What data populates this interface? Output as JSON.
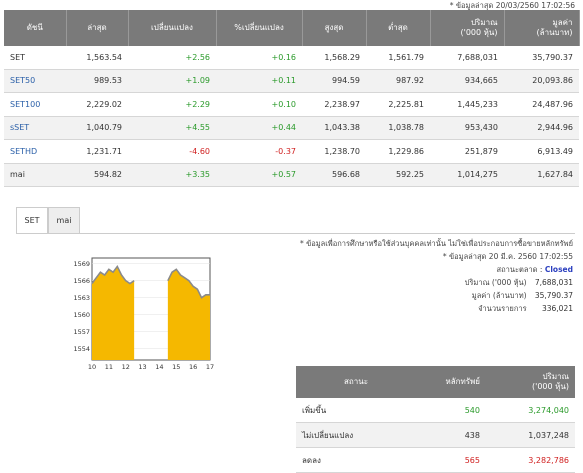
{
  "top_note": "* ข้อมูลล่าสุด 20/03/2560 17:02:56",
  "index_table": {
    "headers": [
      "ดัชนี",
      "ล่าสุด",
      "เปลี่ยนแปลง",
      "%เปลี่ยนแปลง",
      "สูงสุด",
      "ต่ำสุด",
      "ปริมาณ\n('000 หุ้น)",
      "มูลค่า\n(ล้านบาท)"
    ],
    "rows": [
      {
        "name": "SET",
        "last": "1,563.54",
        "chg": "+2.56",
        "pct": "+0.16",
        "high": "1,568.29",
        "low": "1,561.79",
        "vol": "7,688,031",
        "val": "35,790.37",
        "dir": "pos",
        "link": false
      },
      {
        "name": "SET50",
        "last": "989.53",
        "chg": "+1.09",
        "pct": "+0.11",
        "high": "994.59",
        "low": "987.92",
        "vol": "934,665",
        "val": "20,093.86",
        "dir": "pos",
        "link": true
      },
      {
        "name": "SET100",
        "last": "2,229.02",
        "chg": "+2.29",
        "pct": "+0.10",
        "high": "2,238.97",
        "low": "2,225.81",
        "vol": "1,445,233",
        "val": "24,487.96",
        "dir": "pos",
        "link": true
      },
      {
        "name": "sSET",
        "last": "1,040.79",
        "chg": "+4.55",
        "pct": "+0.44",
        "high": "1,043.38",
        "low": "1,038.78",
        "vol": "953,430",
        "val": "2,944.96",
        "dir": "pos",
        "link": true
      },
      {
        "name": "SETHD",
        "last": "1,231.71",
        "chg": "-4.60",
        "pct": "-0.37",
        "high": "1,238.70",
        "low": "1,229.86",
        "vol": "251,879",
        "val": "6,913.49",
        "dir": "neg",
        "link": true
      },
      {
        "name": "mai",
        "last": "594.82",
        "chg": "+3.35",
        "pct": "+0.57",
        "high": "596.68",
        "low": "592.25",
        "vol": "1,014,275",
        "val": "1,627.84",
        "dir": "pos",
        "link": false
      }
    ]
  },
  "tabs": [
    {
      "label": "SET",
      "active": true
    },
    {
      "label": "mai",
      "active": false
    }
  ],
  "disclaimer": "* ข้อมูลเพื่อการศึกษาหรือใช้ส่วนบุคคลเท่านั้น ไม่ใช่เพื่อประกอบการซื้อขายหลักทรัพย์",
  "market_info": {
    "date_label": "* ข้อมูลล่าสุด 20 มี.ค. 2560 17:02:55",
    "status_label": "สถานะตลาด :",
    "status_value": "Closed",
    "volume_label": "ปริมาณ ('000 หุ้น)",
    "volume_value": "7,688,031",
    "value_label": "มูลค่า (ล้านบาท)",
    "value_value": "35,790.37",
    "trades_label": "จำนวนรายการ",
    "trades_value": "336,021"
  },
  "breadth_table": {
    "headers": [
      "สถานะ",
      "หลักทรัพย์",
      "ปริมาณ\n('000 หุ้น)"
    ],
    "rows": [
      {
        "label": "เพิ่มขึ้น",
        "count": "540",
        "volume": "3,274,040",
        "dir": "pos"
      },
      {
        "label": "ไม่เปลี่ยนแปลง",
        "count": "438",
        "volume": "1,037,248",
        "dir": "none"
      },
      {
        "label": "ลดลง",
        "count": "565",
        "volume": "3,282,786",
        "dir": "neg"
      }
    ]
  },
  "colors": {
    "area_fill": "#f5b800",
    "line": "#8a8a8a",
    "frame": "#555555",
    "positive": "#2a9a2a",
    "negative": "#d02020"
  },
  "chart_data": {
    "type": "area",
    "x_ticks": [
      "10",
      "11",
      "12",
      "13",
      "14",
      "15",
      "16",
      "17"
    ],
    "y_ticks": [
      "1569",
      "1566",
      "1563",
      "1560",
      "1557",
      "1554"
    ],
    "ylim": [
      1552,
      1570
    ],
    "xlim": [
      10,
      17
    ],
    "session_gap": [
      12.5,
      14.5
    ],
    "series": [
      {
        "values": [
          [
            10.0,
            1565.5
          ],
          [
            10.25,
            1566.5
          ],
          [
            10.5,
            1567.5
          ],
          [
            10.75,
            1567.0
          ],
          [
            11.0,
            1568.0
          ],
          [
            11.25,
            1567.5
          ],
          [
            11.5,
            1568.5
          ],
          [
            11.75,
            1567.0
          ],
          [
            12.0,
            1566.0
          ],
          [
            12.25,
            1565.5
          ],
          [
            12.5,
            1566.0
          ],
          [
            14.5,
            1566.0
          ],
          [
            14.75,
            1567.5
          ],
          [
            15.0,
            1568.0
          ],
          [
            15.25,
            1567.0
          ],
          [
            15.5,
            1566.5
          ],
          [
            15.75,
            1566.0
          ],
          [
            16.0,
            1565.0
          ],
          [
            16.25,
            1564.5
          ],
          [
            16.5,
            1563.0
          ],
          [
            16.75,
            1563.5
          ],
          [
            17.0,
            1563.5
          ]
        ]
      }
    ]
  }
}
